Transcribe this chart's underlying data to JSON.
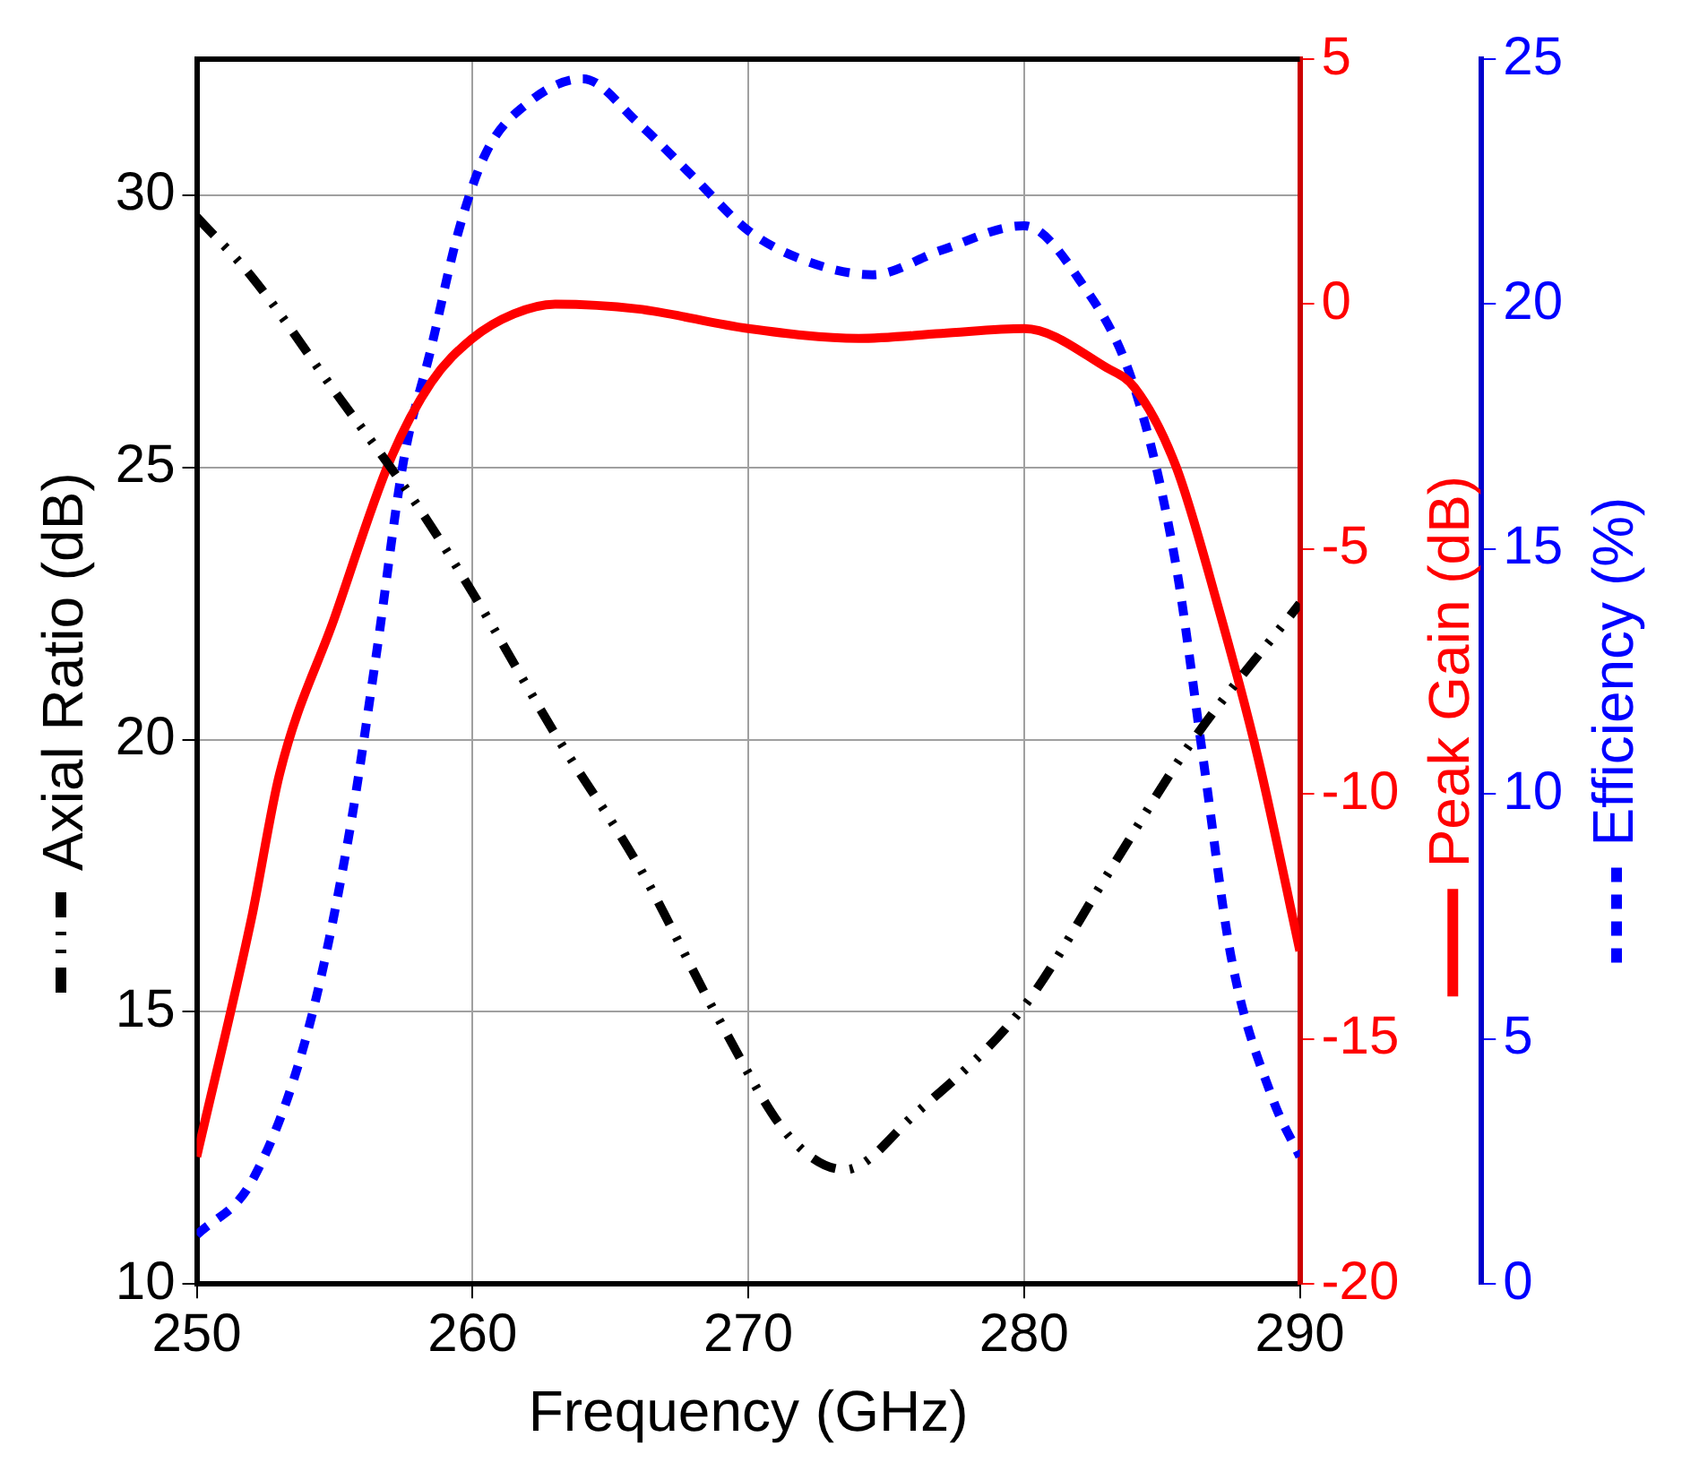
{
  "chart_data": {
    "type": "line",
    "xlabel": "Frequency (GHz)",
    "ylabel": "Axial Ratio (dB)",
    "y2label": "Peak Gain (dB)",
    "y3label": "Efficiency (%)",
    "xlim": [
      250,
      290
    ],
    "xticks": [
      250,
      260,
      270,
      280,
      290
    ],
    "ylim": [
      10,
      32.5
    ],
    "yticks": [
      10,
      15,
      20,
      25,
      30
    ],
    "y2lim": [
      -20,
      5
    ],
    "y2ticks": [
      -20,
      -15,
      -10,
      -5,
      0,
      5
    ],
    "y3lim": [
      0,
      25
    ],
    "y3ticks": [
      0,
      5,
      10,
      15,
      20,
      25
    ],
    "grid": true,
    "legend": false,
    "marker": "none",
    "series": [
      {
        "color": "#000000",
        "line_style": "dashed",
        "axis": "y",
        "x": [
          250,
          252,
          255,
          258,
          260,
          263,
          266,
          269,
          271.5,
          273.5,
          276,
          280,
          283,
          286,
          290
        ],
        "values": [
          29.6,
          28.5,
          26.4,
          24.3,
          22.7,
          20.1,
          17.7,
          14.8,
          12.7,
          12.1,
          13.1,
          15.1,
          17.5,
          19.9,
          22.5
        ]
      },
      {
        "color": "#ff0000",
        "line_style": "solid",
        "axis": "y2",
        "x": [
          250,
          252,
          253,
          255,
          257,
          258.5,
          260,
          261.5,
          263,
          266,
          270,
          274,
          277,
          280,
          283,
          284,
          285.5,
          287,
          288.5,
          290
        ],
        "values": [
          -17.4,
          -12.5,
          -9.6,
          -6.4,
          -3.2,
          -1.6,
          -0.7,
          -0.2,
          0,
          -0.1,
          -0.5,
          -0.7,
          -0.6,
          -0.5,
          -1.3,
          -1.7,
          -3.3,
          -6.1,
          -9.3,
          -13.2
        ]
      },
      {
        "color": "#0000ff",
        "line_style": "dotted",
        "axis": "y3",
        "x": [
          250,
          252,
          254,
          255.5,
          256.5,
          257.5,
          258.5,
          259.5,
          260.5,
          262,
          264,
          266,
          268,
          270,
          272,
          274.5,
          277,
          280,
          282,
          284,
          285.5,
          286.5,
          287.5,
          289,
          290
        ],
        "values": [
          1,
          2.1,
          5.1,
          9.1,
          12.8,
          16.8,
          19.1,
          21.5,
          23.1,
          24.1,
          24.6,
          23.7,
          22.6,
          21.5,
          20.9,
          20.6,
          21.1,
          21.6,
          20.5,
          18.3,
          14.7,
          10.7,
          6.7,
          3.8,
          2.6
        ]
      }
    ]
  }
}
